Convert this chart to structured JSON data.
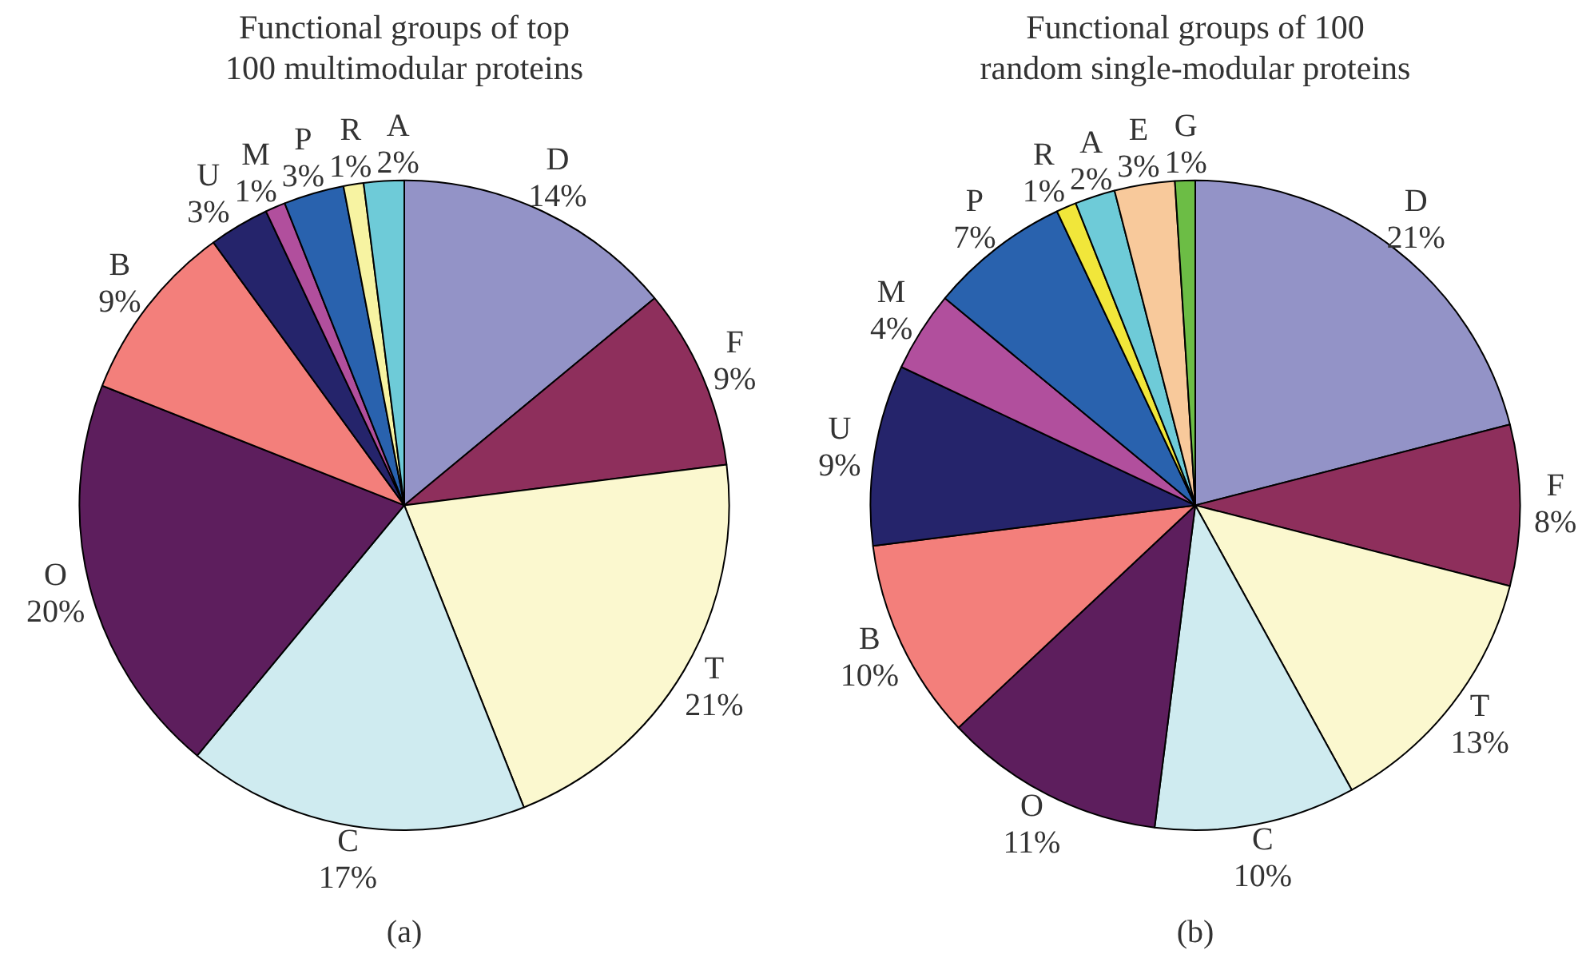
{
  "chart_data": [
    {
      "type": "pie",
      "title": "Functional groups of top\n100 multimodular proteins",
      "categories": [
        "D",
        "F",
        "T",
        "C",
        "O",
        "B",
        "U",
        "M",
        "P",
        "R",
        "A"
      ],
      "values": [
        14,
        9,
        21,
        17,
        20,
        9,
        3,
        1,
        3,
        1,
        2
      ],
      "colors": [
        "#9393c7",
        "#8e2f5c",
        "#fbf8cf",
        "#cfebf0",
        "#5d1e5d",
        "#f37f7b",
        "#25246b",
        "#b14f9d",
        "#2962ae",
        "#f7f3a2",
        "#6ecbd8"
      ],
      "value_labels": [
        "14%",
        "9%",
        "21%",
        "17%",
        "20%",
        "9%",
        "3%",
        "1%",
        "3%",
        "1%",
        "2%"
      ],
      "annotations": [
        "(a)"
      ]
    },
    {
      "type": "pie",
      "title": "Functional groups of 100\nrandom single-modular proteins",
      "categories": [
        "D",
        "F",
        "T",
        "C",
        "O",
        "B",
        "U",
        "M",
        "P",
        "R",
        "A",
        "E",
        "G"
      ],
      "values": [
        21,
        8,
        13,
        10,
        11,
        10,
        9,
        4,
        7,
        1,
        2,
        3,
        1
      ],
      "colors": [
        "#9393c7",
        "#8e2f5c",
        "#fbf8cf",
        "#cfebf0",
        "#5d1e5d",
        "#f37f7b",
        "#25246b",
        "#b14f9d",
        "#2962ae",
        "#f1e63a",
        "#6ecbd8",
        "#f8c99b",
        "#6cbd45"
      ],
      "value_labels": [
        "21%",
        "8%",
        "13%",
        "10%",
        "11%",
        "10%",
        "9%",
        "4%",
        "7%",
        "1%",
        "2%",
        "3%",
        "1%"
      ],
      "annotations": [
        "(b)"
      ]
    }
  ]
}
